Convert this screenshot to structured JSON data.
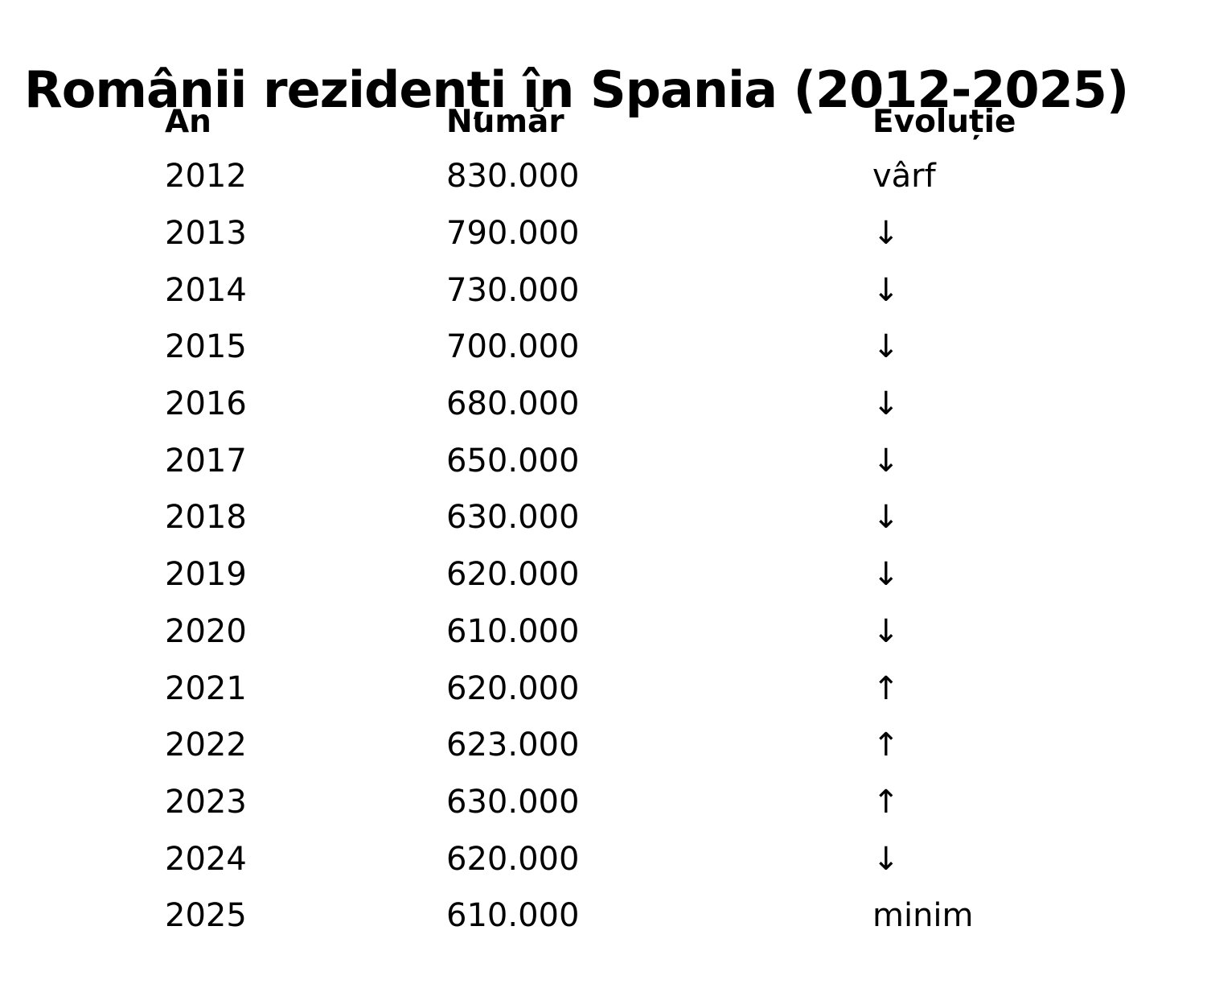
{
  "title": "Românii rezidenți în Spania (2012-2025)",
  "colors": {
    "text": "#000000",
    "background": "#ffffff"
  },
  "table": {
    "headers": {
      "year": "An",
      "number": "Număr",
      "evolution": "Evoluție"
    },
    "rows": [
      {
        "year": "2012",
        "number": "830.000",
        "evolution": "vârf"
      },
      {
        "year": "2013",
        "number": "790.000",
        "evolution": "↓"
      },
      {
        "year": "2014",
        "number": "730.000",
        "evolution": "↓"
      },
      {
        "year": "2015",
        "number": "700.000",
        "evolution": "↓"
      },
      {
        "year": "2016",
        "number": "680.000",
        "evolution": "↓"
      },
      {
        "year": "2017",
        "number": "650.000",
        "evolution": "↓"
      },
      {
        "year": "2018",
        "number": "630.000",
        "evolution": "↓"
      },
      {
        "year": "2019",
        "number": "620.000",
        "evolution": "↓"
      },
      {
        "year": "2020",
        "number": "610.000",
        "evolution": "↓"
      },
      {
        "year": "2021",
        "number": "620.000",
        "evolution": "↑"
      },
      {
        "year": "2022",
        "number": "623.000",
        "evolution": "↑"
      },
      {
        "year": "2023",
        "number": "630.000",
        "evolution": "↑"
      },
      {
        "year": "2024",
        "number": "620.000",
        "evolution": "↓"
      },
      {
        "year": "2025",
        "number": "610.000",
        "evolution": "minim"
      }
    ]
  },
  "chart_data": {
    "type": "table",
    "title": "Românii rezidenți în Spania (2012-2025)",
    "columns": [
      "An",
      "Număr",
      "Evoluție"
    ],
    "x": [
      2012,
      2013,
      2014,
      2015,
      2016,
      2017,
      2018,
      2019,
      2020,
      2021,
      2022,
      2023,
      2024,
      2025
    ],
    "values": [
      830000,
      790000,
      730000,
      700000,
      680000,
      650000,
      630000,
      620000,
      610000,
      620000,
      623000,
      630000,
      620000,
      610000
    ],
    "evolution": [
      "vârf",
      "↓",
      "↓",
      "↓",
      "↓",
      "↓",
      "↓",
      "↓",
      "↓",
      "↑",
      "↑",
      "↑",
      "↓",
      "minim"
    ],
    "annotations": {
      "peak_label": "vârf",
      "minimum_label": "minim"
    }
  }
}
